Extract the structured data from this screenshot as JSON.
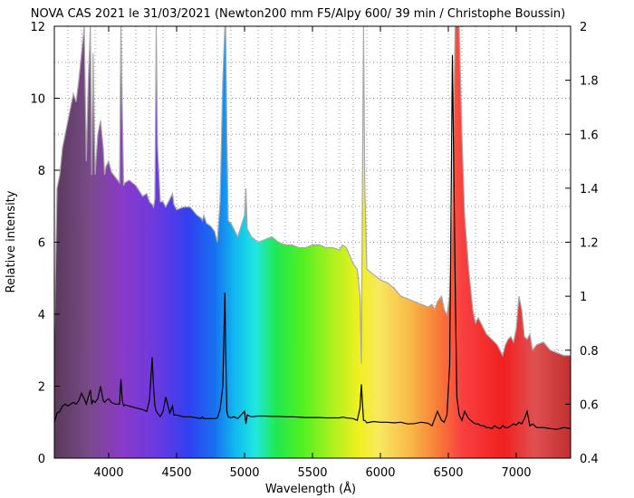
{
  "chart_data": {
    "type": "area",
    "title": "NOVA CAS 2021 le 31/03/2021 (Newton200 mm F5/Alpy 600/ 39 min / Christophe Boussin)",
    "xlabel": "Wavelength (Å)",
    "ylabel": "Relative intensity",
    "xlim": [
      3600,
      7400
    ],
    "ylim_left": [
      0,
      12
    ],
    "ylim_right": [
      0.4,
      2.0
    ],
    "x_ticks": [
      4000,
      4500,
      5000,
      5500,
      6000,
      6500,
      7000
    ],
    "y_ticks_left": [
      0,
      2,
      4,
      6,
      8,
      10,
      12
    ],
    "y_ticks_right": [
      0.4,
      0.6,
      0.8,
      1,
      1.2,
      1.4,
      1.6,
      1.8,
      2
    ],
    "grid": true,
    "series": [
      {
        "axis": "right",
        "style": "spectrum-colored filled area with gray outline",
        "x": [
          3600,
          3620,
          3640,
          3660,
          3680,
          3700,
          3720,
          3740,
          3760,
          3780,
          3800,
          3820,
          3835,
          3850,
          3865,
          3875,
          3885,
          3900,
          3920,
          3940,
          3960,
          3970,
          3980,
          4000,
          4020,
          4050,
          4080,
          4090,
          4100,
          4110,
          4120,
          4150,
          4200,
          4250,
          4280,
          4300,
          4320,
          4330,
          4340,
          4350,
          4360,
          4380,
          4400,
          4420,
          4450,
          4470,
          4480,
          4500,
          4550,
          4600,
          4650,
          4680,
          4690,
          4700,
          4720,
          4750,
          4780,
          4800,
          4820,
          4840,
          4855,
          4861,
          4870,
          4880,
          4900,
          4920,
          4950,
          5000,
          5010,
          5020,
          5050,
          5100,
          5150,
          5200,
          5250,
          5300,
          5350,
          5400,
          5450,
          5500,
          5550,
          5600,
          5650,
          5700,
          5720,
          5750,
          5800,
          5830,
          5850,
          5860,
          5870,
          5876,
          5885,
          5900,
          5950,
          6000,
          6050,
          6100,
          6150,
          6200,
          6250,
          6300,
          6350,
          6380,
          6400,
          6420,
          6450,
          6470,
          6490,
          6510,
          6530,
          6550,
          6563,
          6580,
          6600,
          6620,
          6650,
          6680,
          6700,
          6720,
          6740,
          6760,
          6780,
          6800,
          6820,
          6840,
          6860,
          6880,
          6900,
          6920,
          6940,
          6960,
          6980,
          7000,
          7020,
          7040,
          7060,
          7080,
          7100,
          7120,
          7150,
          7200,
          7250,
          7300,
          7350,
          7400
        ],
        "values": [
          0.85,
          1.4,
          1.45,
          1.55,
          1.6,
          1.65,
          1.7,
          1.75,
          1.72,
          1.8,
          1.9,
          2.0,
          1.5,
          1.8,
          2.0,
          1.45,
          1.9,
          1.45,
          1.6,
          1.65,
          1.55,
          1.45,
          1.48,
          1.5,
          1.46,
          1.44,
          1.42,
          2.0,
          1.7,
          1.41,
          1.42,
          1.43,
          1.41,
          1.37,
          1.38,
          1.35,
          1.34,
          1.33,
          1.36,
          2.0,
          1.55,
          1.35,
          1.35,
          1.33,
          1.36,
          1.38,
          1.34,
          1.32,
          1.33,
          1.33,
          1.3,
          1.29,
          1.28,
          1.3,
          1.27,
          1.26,
          1.24,
          1.2,
          1.35,
          1.8,
          2.0,
          2.0,
          1.6,
          1.28,
          1.27,
          1.25,
          1.22,
          1.3,
          1.4,
          1.25,
          1.22,
          1.2,
          1.21,
          1.22,
          1.2,
          1.19,
          1.19,
          1.18,
          1.18,
          1.19,
          1.19,
          1.18,
          1.18,
          1.17,
          1.19,
          1.18,
          1.12,
          1.1,
          1.0,
          0.75,
          1.6,
          2.0,
          1.4,
          1.1,
          1.08,
          1.06,
          1.05,
          1.03,
          1.0,
          0.99,
          0.98,
          0.97,
          0.96,
          0.97,
          0.95,
          0.98,
          1.0,
          0.95,
          0.93,
          1.0,
          1.3,
          2.0,
          2.0,
          2.0,
          1.6,
          1.3,
          1.1,
          0.95,
          0.9,
          0.92,
          0.9,
          0.88,
          0.86,
          0.85,
          0.84,
          0.83,
          0.82,
          0.8,
          0.78,
          0.82,
          0.84,
          0.85,
          0.83,
          0.88,
          1.0,
          0.95,
          0.85,
          0.84,
          0.86,
          0.8,
          0.82,
          0.83,
          0.8,
          0.79,
          0.78,
          0.78
        ]
      },
      {
        "axis": "left",
        "style": "black line",
        "x": [
          3600,
          3620,
          3640,
          3660,
          3680,
          3700,
          3720,
          3740,
          3760,
          3780,
          3800,
          3820,
          3835,
          3850,
          3865,
          3875,
          3885,
          3900,
          3920,
          3940,
          3960,
          3970,
          3980,
          4000,
          4020,
          4050,
          4080,
          4090,
          4100,
          4110,
          4120,
          4150,
          4200,
          4250,
          4280,
          4300,
          4320,
          4330,
          4340,
          4350,
          4360,
          4380,
          4400,
          4420,
          4450,
          4470,
          4480,
          4500,
          4550,
          4600,
          4650,
          4680,
          4690,
          4700,
          4720,
          4750,
          4780,
          4800,
          4820,
          4840,
          4855,
          4861,
          4870,
          4880,
          4900,
          4920,
          4950,
          5000,
          5010,
          5020,
          5050,
          5100,
          5150,
          5200,
          5250,
          5300,
          5350,
          5400,
          5450,
          5500,
          5550,
          5600,
          5650,
          5700,
          5720,
          5750,
          5800,
          5830,
          5850,
          5860,
          5870,
          5876,
          5885,
          5900,
          5950,
          6000,
          6050,
          6100,
          6150,
          6200,
          6250,
          6300,
          6350,
          6380,
          6400,
          6420,
          6450,
          6470,
          6490,
          6510,
          6530,
          6550,
          6563,
          6580,
          6600,
          6620,
          6650,
          6680,
          6700,
          6720,
          6740,
          6760,
          6780,
          6800,
          6820,
          6840,
          6860,
          6880,
          6900,
          6920,
          6940,
          6960,
          6980,
          7000,
          7020,
          7040,
          7060,
          7080,
          7100,
          7120,
          7150,
          7200,
          7250,
          7300,
          7350,
          7400
        ],
        "values": [
          1.0,
          1.25,
          1.3,
          1.45,
          1.5,
          1.45,
          1.5,
          1.55,
          1.5,
          1.6,
          1.8,
          1.65,
          1.5,
          1.7,
          1.9,
          1.5,
          1.6,
          1.55,
          1.65,
          2.0,
          1.6,
          1.55,
          1.6,
          1.65,
          1.55,
          1.5,
          1.5,
          2.2,
          1.6,
          1.45,
          1.48,
          1.45,
          1.4,
          1.35,
          1.3,
          1.6,
          2.8,
          2.0,
          1.45,
          1.3,
          1.25,
          1.15,
          1.3,
          1.7,
          1.25,
          1.45,
          1.2,
          1.2,
          1.15,
          1.15,
          1.12,
          1.1,
          1.15,
          1.1,
          1.1,
          1.1,
          1.1,
          1.12,
          1.35,
          2.0,
          4.6,
          3.0,
          1.3,
          1.15,
          1.12,
          1.15,
          1.1,
          1.3,
          0.95,
          1.2,
          1.15,
          1.17,
          1.17,
          1.16,
          1.16,
          1.15,
          1.15,
          1.14,
          1.13,
          1.13,
          1.13,
          1.12,
          1.12,
          1.12,
          1.14,
          1.12,
          1.1,
          1.05,
          1.4,
          2.05,
          1.4,
          1.05,
          1.05,
          0.98,
          1.02,
          1.0,
          1.0,
          0.98,
          1.0,
          0.95,
          0.96,
          1.0,
          0.97,
          0.9,
          1.1,
          1.3,
          1.05,
          1.0,
          1.2,
          2.6,
          11.2,
          5.0,
          1.7,
          1.2,
          1.05,
          1.3,
          1.1,
          1.0,
          0.95,
          0.95,
          0.9,
          0.9,
          0.85,
          0.85,
          0.82,
          0.9,
          0.85,
          0.82,
          0.9,
          0.85,
          0.85,
          0.9,
          0.95,
          0.92,
          1.0,
          0.95,
          1.1,
          1.3,
          0.9,
          0.95,
          0.85,
          0.85,
          0.82,
          0.8,
          0.85,
          0.82
        ]
      }
    ]
  }
}
